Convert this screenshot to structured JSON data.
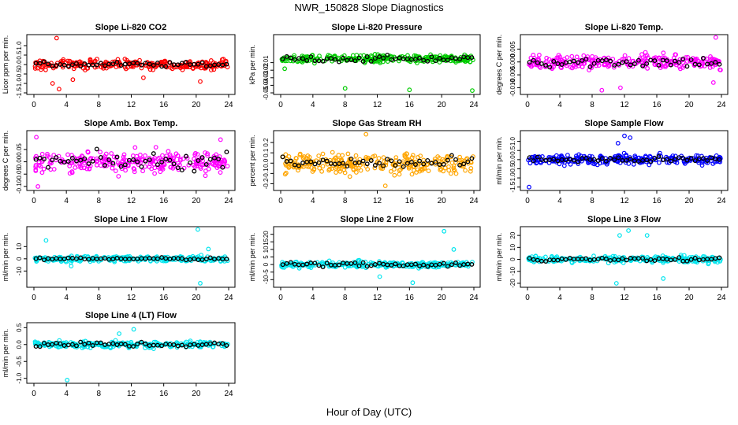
{
  "figure": {
    "title": "NWR_150828  Slope Diagnostics",
    "x_label": "Hour of Day (UTC)"
  },
  "colors": {
    "red": "#ff0000",
    "green": "#00cc00",
    "magenta": "#ff00ff",
    "orange": "#ffa500",
    "blue": "#0000ff",
    "cyan": "#00e5ee",
    "black": "#000000"
  },
  "chart_data": [
    {
      "type": "scatter",
      "title": "Slope Li-820 CO2",
      "ylabel": "Licor ppm per min.",
      "xlim": [
        0,
        24
      ],
      "x_ticks": [
        "0",
        "4",
        "8",
        "12",
        "16",
        "20",
        "24"
      ],
      "ylim": [
        -1.5,
        1.5
      ],
      "y_ticks": [
        -1.5,
        -1.0,
        -0.5,
        0.0,
        0.5,
        1.0
      ],
      "y_tick_labels": [
        "-1.5",
        "-1.0",
        "-0.5",
        "0.0",
        "0.5",
        "1.0"
      ],
      "color": "red",
      "spread": 0.25,
      "extremes": [
        [
          2.3,
          -1.0
        ],
        [
          2.8,
          1.4
        ],
        [
          4.8,
          -0.8
        ],
        [
          13.5,
          -0.7
        ],
        [
          20.5,
          -0.9
        ],
        [
          3.1,
          -1.3
        ]
      ],
      "black_spread": 0.12
    },
    {
      "type": "scatter",
      "title": "Slope Li-820 Pressure",
      "ylabel": "kPa per min.",
      "xlim": [
        0,
        24
      ],
      "x_ticks": [
        "0",
        "4",
        "8",
        "12",
        "16",
        "20",
        "24"
      ],
      "ylim": [
        -0.05,
        0.025
      ],
      "y_ticks": [
        -0.05,
        -0.04,
        -0.03,
        -0.02,
        -0.01
      ],
      "y_tick_labels": [
        "-0.05",
        "-0.04",
        "-0.03",
        "-0.02",
        "-0.01"
      ],
      "color": "green",
      "spread": 0.005,
      "extremes": [
        [
          8.0,
          -0.044
        ],
        [
          16.0,
          -0.046
        ],
        [
          23.8,
          -0.047
        ],
        [
          0.5,
          -0.018
        ]
      ],
      "black_spread": 0.004
    },
    {
      "type": "scatter",
      "title": "Slope Li-820 Temp.",
      "ylabel": "degrees C per min.",
      "xlim": [
        0,
        24
      ],
      "x_ticks": [
        "0",
        "4",
        "8",
        "12",
        "16",
        "20",
        "24"
      ],
      "ylim": [
        -0.012,
        0.01
      ],
      "y_ticks": [
        -0.01,
        -0.005,
        0.0,
        0.005
      ],
      "y_tick_labels": [
        "-0.010",
        "-0.005",
        "0.000",
        "0.005"
      ],
      "color": "magenta",
      "spread": 0.0025,
      "extremes": [
        [
          23.3,
          0.0095
        ],
        [
          11.5,
          -0.01
        ],
        [
          9.2,
          -0.011
        ],
        [
          23.0,
          -0.008
        ]
      ],
      "black_spread": 0.002
    },
    {
      "type": "scatter",
      "title": "Slope Amb. Box Temp.",
      "ylabel": "degrees C per min.",
      "xlim": [
        0,
        24
      ],
      "x_ticks": [
        "0",
        "4",
        "8",
        "12",
        "16",
        "20",
        "24"
      ],
      "ylim": [
        -0.11,
        0.12
      ],
      "y_ticks": [
        -0.1,
        -0.05,
        0.0,
        0.05
      ],
      "y_tick_labels": [
        "-0.10",
        "-0.05",
        "0.00",
        "0.05"
      ],
      "color": "magenta",
      "spread": 0.045,
      "extremes": [
        [
          0.3,
          0.1
        ],
        [
          0.5,
          -0.1
        ],
        [
          23.0,
          0.09
        ]
      ],
      "black_spread": 0.035
    },
    {
      "type": "scatter",
      "title": "Slope Gas Stream RH",
      "ylabel": "percent per min.",
      "xlim": [
        0,
        24
      ],
      "x_ticks": [
        "0",
        "4",
        "8",
        "12",
        "16",
        "20",
        "24"
      ],
      "ylim": [
        -0.25,
        0.3
      ],
      "y_ticks": [
        -0.2,
        -0.1,
        0.0,
        0.1,
        0.2
      ],
      "y_tick_labels": [
        "-0.2",
        "-0.1",
        "0.0",
        "0.1",
        "0.2"
      ],
      "color": "orange",
      "spread": 0.09,
      "extremes": [
        [
          10.6,
          0.28
        ],
        [
          13.0,
          -0.22
        ]
      ],
      "black_spread": 0.06
    },
    {
      "type": "scatter",
      "title": "Slope Sample Flow",
      "ylabel": "ml/min per min.",
      "xlim": [
        0,
        24
      ],
      "x_ticks": [
        "0",
        "4",
        "8",
        "12",
        "16",
        "20",
        "24"
      ],
      "ylim": [
        -1.6,
        1.5
      ],
      "y_ticks": [
        -1.5,
        -1.0,
        -0.5,
        0.0,
        0.5,
        1.0
      ],
      "y_tick_labels": [
        "-1.5",
        "-1.0",
        "-0.5",
        "0.0",
        "0.5",
        "1.0"
      ],
      "color": "blue",
      "spread": 0.25,
      "extremes": [
        [
          0.2,
          -1.5
        ],
        [
          12.0,
          1.3
        ],
        [
          12.7,
          1.2
        ],
        [
          11.2,
          0.9
        ]
      ],
      "black_spread": 0.15
    },
    {
      "type": "scatter",
      "title": "Slope Line 1 Flow",
      "ylabel": "ml/min per min.",
      "xlim": [
        0,
        24
      ],
      "x_ticks": [
        "0",
        "4",
        "8",
        "12",
        "16",
        "20",
        "24"
      ],
      "ylim": [
        -22,
        25
      ],
      "y_ticks": [
        -10,
        0,
        10
      ],
      "y_tick_labels": [
        "-10",
        "0",
        "10"
      ],
      "color": "cyan",
      "spread": 2.2,
      "extremes": [
        [
          20.2,
          24
        ],
        [
          20.5,
          -20
        ],
        [
          1.5,
          15
        ],
        [
          4.6,
          -6
        ],
        [
          21.5,
          8
        ]
      ],
      "black_spread": 1.0
    },
    {
      "type": "scatter",
      "title": "Slope Line 2 Flow",
      "ylabel": "ml/min per min.",
      "xlim": [
        0,
        24
      ],
      "x_ticks": [
        "0",
        "4",
        "8",
        "12",
        "16",
        "20",
        "24"
      ],
      "ylim": [
        -14,
        24
      ],
      "y_ticks": [
        -10,
        -5,
        0,
        5,
        10,
        15,
        20
      ],
      "y_tick_labels": [
        "-10",
        "-5",
        "0",
        "5",
        "10",
        "15",
        "20"
      ],
      "color": "cyan",
      "spread": 2.0,
      "extremes": [
        [
          20.3,
          22
        ],
        [
          16.4,
          -12
        ],
        [
          21.5,
          10
        ],
        [
          12.3,
          -8
        ]
      ],
      "black_spread": 1.5
    },
    {
      "type": "scatter",
      "title": "Slope Line 3 Flow",
      "ylabel": "ml/min per min.",
      "xlim": [
        0,
        24
      ],
      "x_ticks": [
        "0",
        "4",
        "8",
        "12",
        "16",
        "20",
        "24"
      ],
      "ylim": [
        -22,
        26
      ],
      "y_ticks": [
        -20,
        -10,
        0,
        10,
        20
      ],
      "y_tick_labels": [
        "-20",
        "-10",
        "0",
        "10",
        "20"
      ],
      "color": "cyan",
      "spread": 2.5,
      "extremes": [
        [
          12.5,
          24
        ],
        [
          11.0,
          -20
        ],
        [
          11.4,
          20
        ],
        [
          14.8,
          20
        ],
        [
          16.8,
          -16
        ]
      ],
      "black_spread": 1.5
    },
    {
      "type": "scatter",
      "title": "Slope Line 4 (LT) Flow",
      "ylabel": "ml/min per min.",
      "xlim": [
        0,
        24
      ],
      "x_ticks": [
        "0",
        "4",
        "8",
        "12",
        "16",
        "20",
        "24"
      ],
      "ylim": [
        -1.1,
        0.6
      ],
      "y_ticks": [
        -1.0,
        -0.5,
        0.0,
        0.5
      ],
      "y_tick_labels": [
        "-1.0",
        "-0.5",
        "0.0",
        "0.5"
      ],
      "color": "cyan",
      "spread": 0.09,
      "extremes": [
        [
          4.1,
          -1.05
        ],
        [
          12.3,
          0.45
        ],
        [
          10.5,
          0.32
        ]
      ],
      "black_spread": 0.08
    }
  ]
}
